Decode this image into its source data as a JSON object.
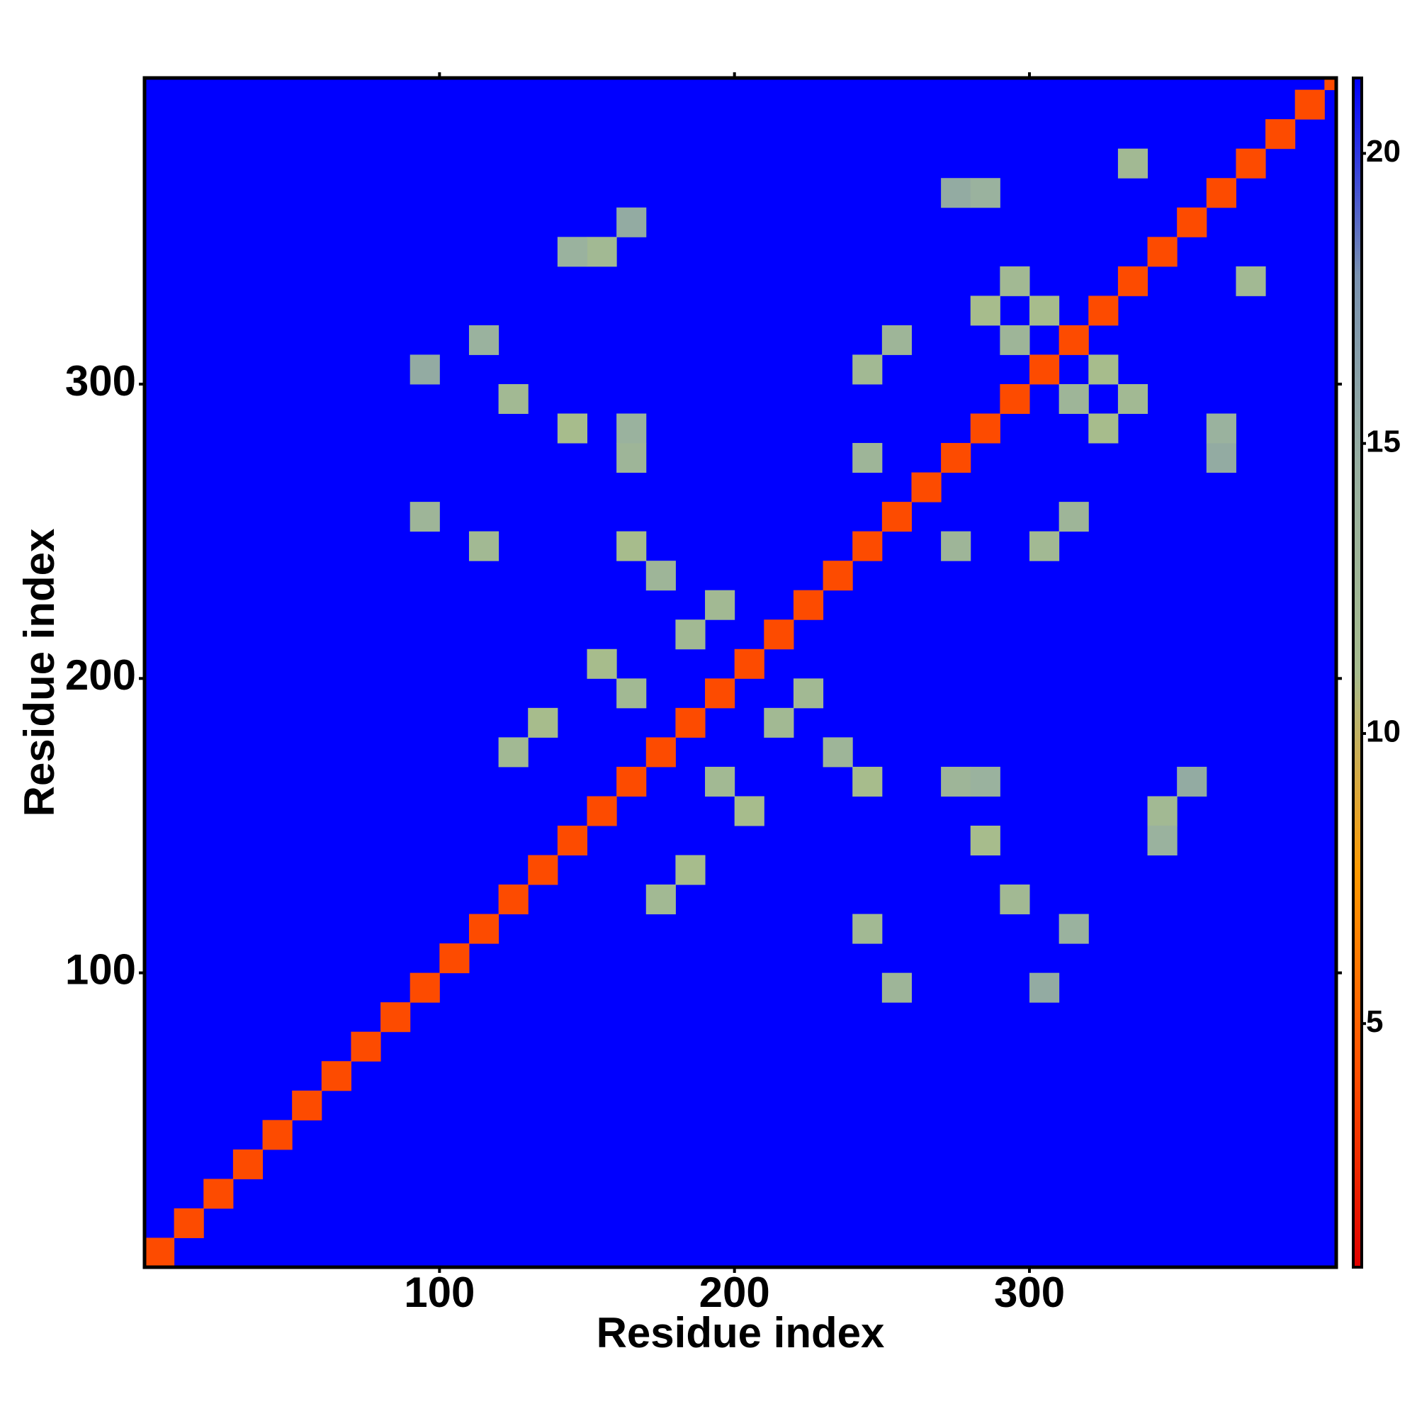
{
  "chart_data": {
    "type": "heatmap",
    "x_label": "Residue index",
    "y_label": "Residue index",
    "xlim": [
      0,
      404
    ],
    "ylim": [
      0,
      404
    ],
    "xticks": [
      100,
      200,
      300
    ],
    "yticks": [
      100,
      200,
      300
    ],
    "clim": [
      0.8,
      21.3
    ],
    "cticks": [
      5,
      10,
      15,
      20
    ],
    "colormap": [
      "#e00000",
      "#ff5000",
      "#ff9a00",
      "#a6bc8e",
      "#98b0a0",
      "#7a92b0",
      "#0000ff"
    ],
    "background_color": "#0000ff",
    "x": [
      0,
      10,
      20,
      30,
      40,
      50,
      60,
      70,
      80,
      90,
      100,
      110,
      120,
      130,
      140,
      150,
      160,
      170,
      180,
      190,
      200,
      210,
      220,
      230,
      240,
      250,
      260,
      270,
      280,
      290,
      300,
      310,
      320,
      330,
      340,
      350,
      360,
      370,
      380,
      390,
      400,
      150,
      140,
      160,
      110,
      90,
      120,
      140,
      160,
      160,
      90,
      110,
      160,
      170,
      180,
      190,
      150,
      160,
      130,
      120,
      240,
      240,
      250,
      280,
      290,
      300,
      270,
      280,
      330,
      290,
      340,
      340,
      350,
      310,
      300,
      290,
      280,
      270,
      280,
      250,
      240,
      240,
      230,
      210,
      220,
      200,
      190,
      180,
      170,
      300,
      270,
      310,
      320,
      330,
      320,
      360,
      360,
      370,
      310
    ],
    "y": [
      0,
      10,
      20,
      30,
      40,
      50,
      60,
      70,
      80,
      90,
      100,
      110,
      120,
      130,
      140,
      150,
      160,
      170,
      180,
      190,
      200,
      210,
      220,
      230,
      240,
      250,
      260,
      270,
      280,
      290,
      300,
      310,
      320,
      330,
      340,
      350,
      360,
      370,
      380,
      390,
      400,
      340,
      340,
      350,
      310,
      300,
      290,
      280,
      270,
      280,
      250,
      240,
      240,
      230,
      210,
      220,
      200,
      190,
      180,
      170,
      300,
      270,
      310,
      320,
      330,
      320,
      360,
      360,
      370,
      310,
      150,
      140,
      160,
      110,
      90,
      120,
      140,
      160,
      160,
      90,
      110,
      160,
      170,
      180,
      190,
      150,
      160,
      130,
      120,
      240,
      240,
      250,
      280,
      290,
      300,
      270,
      280,
      330,
      290
    ],
    "values": [
      4,
      4,
      4,
      4,
      4,
      4,
      4,
      4,
      4,
      4,
      4,
      4,
      4,
      4,
      4,
      4,
      4,
      4,
      4,
      4,
      4,
      4,
      4,
      4,
      4,
      4,
      4,
      4,
      4,
      4,
      4,
      4,
      4,
      4,
      4,
      4,
      4,
      4,
      4,
      4,
      4,
      12,
      14,
      15,
      14,
      15,
      12,
      11,
      13,
      14,
      13,
      12,
      11,
      13,
      12,
      12,
      11,
      12,
      11,
      12,
      12,
      13,
      13,
      11,
      12,
      11,
      15,
      14,
      12,
      13,
      12,
      14,
      15,
      14,
      15,
      12,
      11,
      13,
      14,
      13,
      12,
      11,
      13,
      12,
      12,
      11,
      12,
      11,
      12,
      12,
      13,
      13,
      11,
      12,
      11,
      15,
      14,
      12,
      13
    ]
  }
}
